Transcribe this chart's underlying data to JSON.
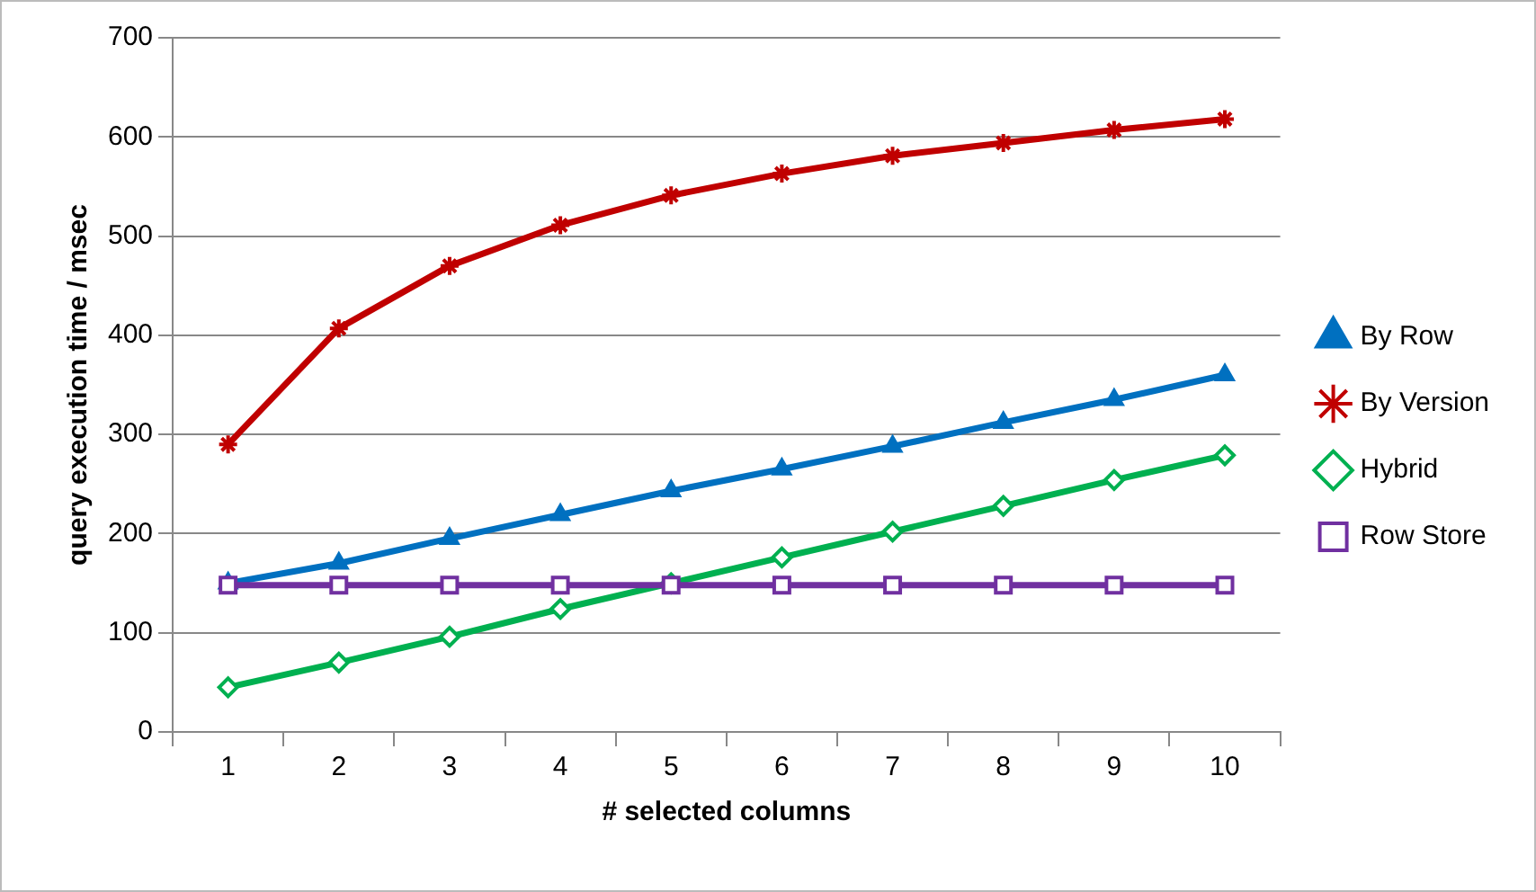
{
  "chart_data": {
    "type": "line",
    "xlabel": "# selected columns",
    "ylabel": "query execution time / msec",
    "categories": [
      "1",
      "2",
      "3",
      "4",
      "5",
      "6",
      "7",
      "8",
      "9",
      "10"
    ],
    "ylim": [
      0,
      700
    ],
    "yticks": [
      0,
      100,
      200,
      300,
      400,
      500,
      600,
      700
    ],
    "grid": "y",
    "legend": "right",
    "line_style": "solid",
    "series": [
      {
        "name": "By Row",
        "color": "#0070c0",
        "marker": "triangle",
        "values": [
          150,
          170,
          195,
          219,
          243,
          265,
          288,
          312,
          335,
          360
        ]
      },
      {
        "name": "By Version",
        "color": "#c00000",
        "marker": "cross",
        "values": [
          290,
          407,
          470,
          511,
          541,
          563,
          581,
          594,
          607,
          618
        ]
      },
      {
        "name": "Hybrid",
        "color": "#00b050",
        "marker": "diamond",
        "values": [
          45,
          70,
          96,
          124,
          150,
          176,
          202,
          228,
          254,
          279
        ]
      },
      {
        "name": "Row Store",
        "color": "#7030a0",
        "marker": "square",
        "values": [
          148,
          148,
          148,
          148,
          148,
          148,
          148,
          148,
          148,
          148
        ]
      }
    ]
  }
}
